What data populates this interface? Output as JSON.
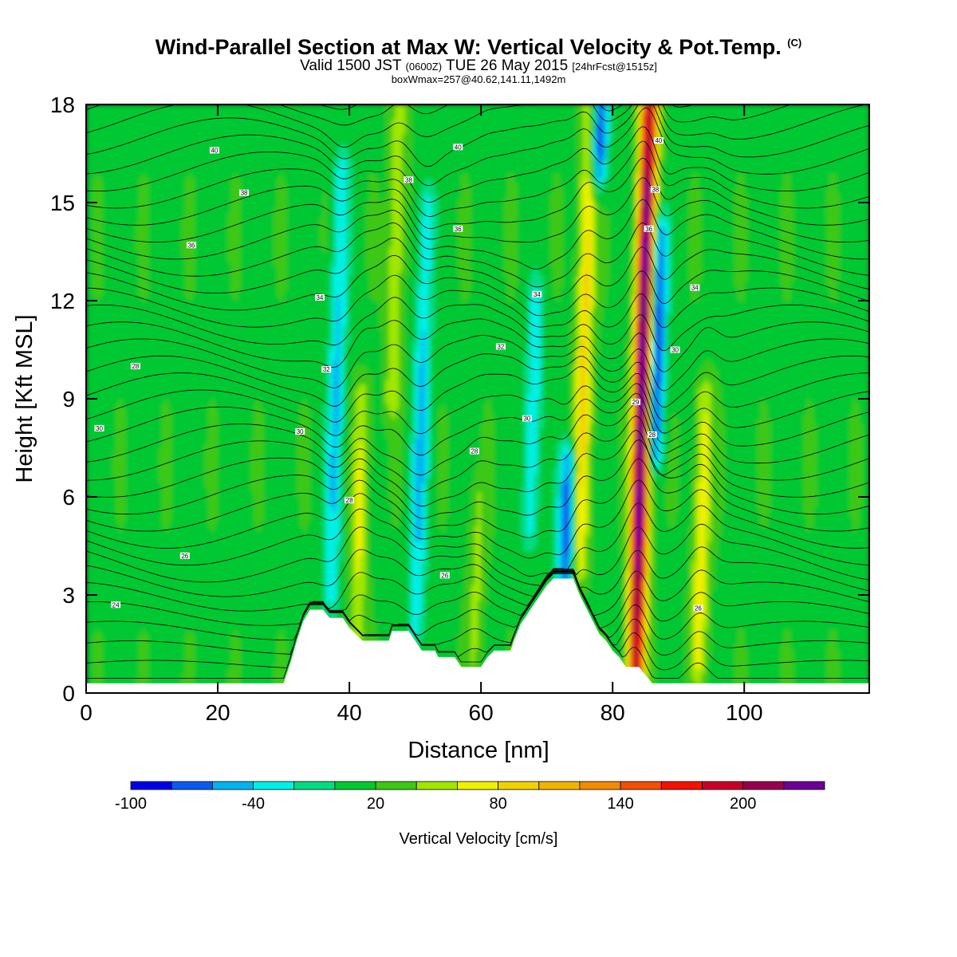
{
  "title": {
    "main": "Wind-Parallel Section at Max W: Vertical Velocity & Pot.Temp.",
    "copyright": "(C)",
    "valid_prefix": "Valid 1500 JST",
    "valid_utc": "(0600Z)",
    "valid_date": "TUE 26 May 2015",
    "forecast": "[24hrFcst@1515z]",
    "box_info": "boxWmax=257@40.62,141.11,1492m"
  },
  "chart_data": {
    "type": "heatmap",
    "xlabel": "Distance [nm]",
    "ylabel": "Height [Kft MSL]",
    "xlim": [
      0,
      119
    ],
    "ylim": [
      0,
      18
    ],
    "x_ticks": [
      "0",
      "20",
      "40",
      "60",
      "80",
      "100"
    ],
    "y_ticks": [
      "0",
      "3",
      "6",
      "9",
      "12",
      "15",
      "18"
    ],
    "colorbar": {
      "label": "Vertical Velocity [cm/s]",
      "tick_labels": [
        "-100",
        "-40",
        "20",
        "80",
        "140",
        "200"
      ],
      "tick_values": [
        -100,
        -40,
        20,
        80,
        140,
        200
      ],
      "levels": [
        -100,
        -80,
        -60,
        -40,
        -20,
        0,
        20,
        40,
        60,
        80,
        100,
        120,
        140,
        160,
        180,
        200,
        220,
        240
      ],
      "colors": [
        "#0000e6",
        "#0a5af0",
        "#00b4f0",
        "#00f0e6",
        "#00dc82",
        "#00c832",
        "#3cc814",
        "#a0e600",
        "#f0f000",
        "#f0d200",
        "#f0b400",
        "#f08c00",
        "#f05000",
        "#f01400",
        "#c80028",
        "#960050",
        "#6e0096"
      ]
    },
    "background_w": 15,
    "updrafts_w": [
      {
        "x": 84.5,
        "y_bottom": 0.8,
        "y_top": 18,
        "peak_w": 257
      },
      {
        "x": 75.5,
        "y_bottom": 4,
        "y_top": 18,
        "peak_w": 90
      },
      {
        "x": 94,
        "y_bottom": 1,
        "y_top": 9,
        "peak_w": 75
      },
      {
        "x": 42,
        "y_bottom": 2,
        "y_top": 9,
        "peak_w": 65
      },
      {
        "x": 60,
        "y_bottom": 1,
        "y_top": 6,
        "peak_w": 45
      },
      {
        "x": 46.5,
        "y_bottom": 9,
        "y_top": 18,
        "peak_w": 60
      }
    ],
    "downdrafts_w": [
      {
        "x": 86.5,
        "y_bottom": 7.5,
        "y_top": 14,
        "peak_w": -95
      },
      {
        "x": 73.5,
        "y_bottom": 3,
        "y_top": 7,
        "peak_w": -80
      },
      {
        "x": 38,
        "y_bottom": 3,
        "y_top": 16,
        "peak_w": -45
      },
      {
        "x": 51,
        "y_bottom": 2,
        "y_top": 15,
        "peak_w": -45
      },
      {
        "x": 68,
        "y_bottom": 5,
        "y_top": 12,
        "peak_w": -40
      },
      {
        "x": 77,
        "y_bottom": 16,
        "y_top": 18,
        "peak_w": -90
      }
    ],
    "terrain": [
      [
        0,
        0.3
      ],
      [
        30,
        0.3
      ],
      [
        31,
        0.9
      ],
      [
        32,
        1.6
      ],
      [
        33,
        2.2
      ],
      [
        34,
        2.55
      ],
      [
        36,
        2.55
      ],
      [
        37,
        2.3
      ],
      [
        39,
        2.3
      ],
      [
        40,
        2.0
      ],
      [
        41,
        1.8
      ],
      [
        42,
        1.6
      ],
      [
        46,
        1.6
      ],
      [
        46.5,
        1.9
      ],
      [
        49,
        1.9
      ],
      [
        50,
        1.6
      ],
      [
        51,
        1.3
      ],
      [
        53,
        1.3
      ],
      [
        53.5,
        1.1
      ],
      [
        56,
        1.1
      ],
      [
        57,
        0.8
      ],
      [
        60,
        0.8
      ],
      [
        61,
        1.1
      ],
      [
        62,
        1.3
      ],
      [
        64.5,
        1.3
      ],
      [
        65,
        1.6
      ],
      [
        66,
        2.1
      ],
      [
        67,
        2.4
      ],
      [
        68,
        2.7
      ],
      [
        69,
        3.0
      ],
      [
        70,
        3.3
      ],
      [
        71,
        3.5
      ],
      [
        74,
        3.5
      ],
      [
        75,
        3.0
      ],
      [
        76,
        2.6
      ],
      [
        77,
        2.2
      ],
      [
        78,
        1.8
      ],
      [
        79,
        1.6
      ],
      [
        80,
        1.3
      ],
      [
        81,
        1.1
      ],
      [
        82,
        0.8
      ],
      [
        84,
        0.8
      ],
      [
        86,
        0.3
      ],
      [
        119,
        0.3
      ]
    ],
    "theta_contours": {
      "base_value": 24,
      "interval": 1,
      "count": 40,
      "annotations": [
        {
          "text": "40",
          "x": 19.5,
          "y": 16.6
        },
        {
          "text": "38",
          "x": 24,
          "y": 15.3
        },
        {
          "text": "36",
          "x": 16,
          "y": 13.7
        },
        {
          "text": "34",
          "x": 35.5,
          "y": 12.1
        },
        {
          "text": "32",
          "x": 36.5,
          "y": 9.9
        },
        {
          "text": "30",
          "x": 2,
          "y": 8.1
        },
        {
          "text": "30",
          "x": 32.5,
          "y": 8.0
        },
        {
          "text": "28",
          "x": 7.5,
          "y": 10.0
        },
        {
          "text": "28",
          "x": 40,
          "y": 5.9
        },
        {
          "text": "26",
          "x": 15,
          "y": 4.2
        },
        {
          "text": "26",
          "x": 54.5,
          "y": 3.6
        },
        {
          "text": "24",
          "x": 4.5,
          "y": 2.7
        },
        {
          "text": "40",
          "x": 56.5,
          "y": 16.7
        },
        {
          "text": "38",
          "x": 49,
          "y": 15.7
        },
        {
          "text": "36",
          "x": 56.5,
          "y": 14.2
        },
        {
          "text": "34",
          "x": 68.5,
          "y": 12.2
        },
        {
          "text": "32",
          "x": 63,
          "y": 10.6
        },
        {
          "text": "30",
          "x": 67,
          "y": 8.4
        },
        {
          "text": "28",
          "x": 59,
          "y": 7.4
        },
        {
          "text": "40",
          "x": 87,
          "y": 16.9
        },
        {
          "text": "38",
          "x": 86.5,
          "y": 15.4
        },
        {
          "text": "36",
          "x": 85.5,
          "y": 14.2
        },
        {
          "text": "34",
          "x": 92.5,
          "y": 12.4
        },
        {
          "text": "30",
          "x": 89.5,
          "y": 10.5
        },
        {
          "text": "29",
          "x": 83.5,
          "y": 8.9
        },
        {
          "text": "28",
          "x": 86,
          "y": 7.9
        },
        {
          "text": "26",
          "x": 93,
          "y": 2.6
        }
      ]
    }
  }
}
